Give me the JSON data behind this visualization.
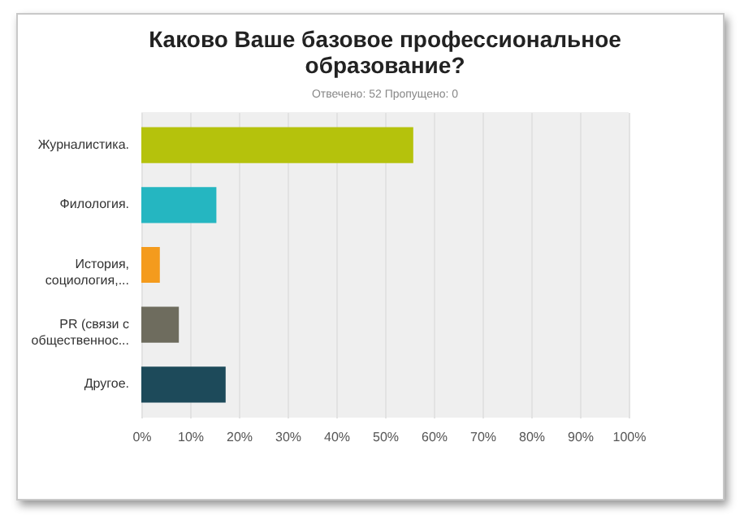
{
  "chart_data": {
    "type": "bar",
    "orientation": "horizontal",
    "title": "Каково Ваше базовое профессиональное образование?",
    "subtitle": "Отвечено: 52    Пропущено: 0",
    "categories": [
      "Журналистика.",
      "Филология.",
      "История, социология,...",
      "PR (связи с общественнос...",
      "Другое."
    ],
    "values": [
      55.8,
      15.4,
      3.8,
      7.7,
      17.3
    ],
    "colors": [
      "#b5c20c",
      "#25b6c1",
      "#f49b1d",
      "#6e6c5e",
      "#1d4a5a"
    ],
    "xlim": [
      0,
      100
    ],
    "xticks": [
      {
        "value": 0,
        "label": "0%"
      },
      {
        "value": 10,
        "label": "10%"
      },
      {
        "value": 20,
        "label": "20%"
      },
      {
        "value": 30,
        "label": "30%"
      },
      {
        "value": 40,
        "label": "40%"
      },
      {
        "value": 50,
        "label": "50%"
      },
      {
        "value": 60,
        "label": "60%"
      },
      {
        "value": 70,
        "label": "70%"
      },
      {
        "value": 80,
        "label": "80%"
      },
      {
        "value": 90,
        "label": "90%"
      },
      {
        "value": 100,
        "label": "100%"
      }
    ],
    "grid": "x"
  }
}
